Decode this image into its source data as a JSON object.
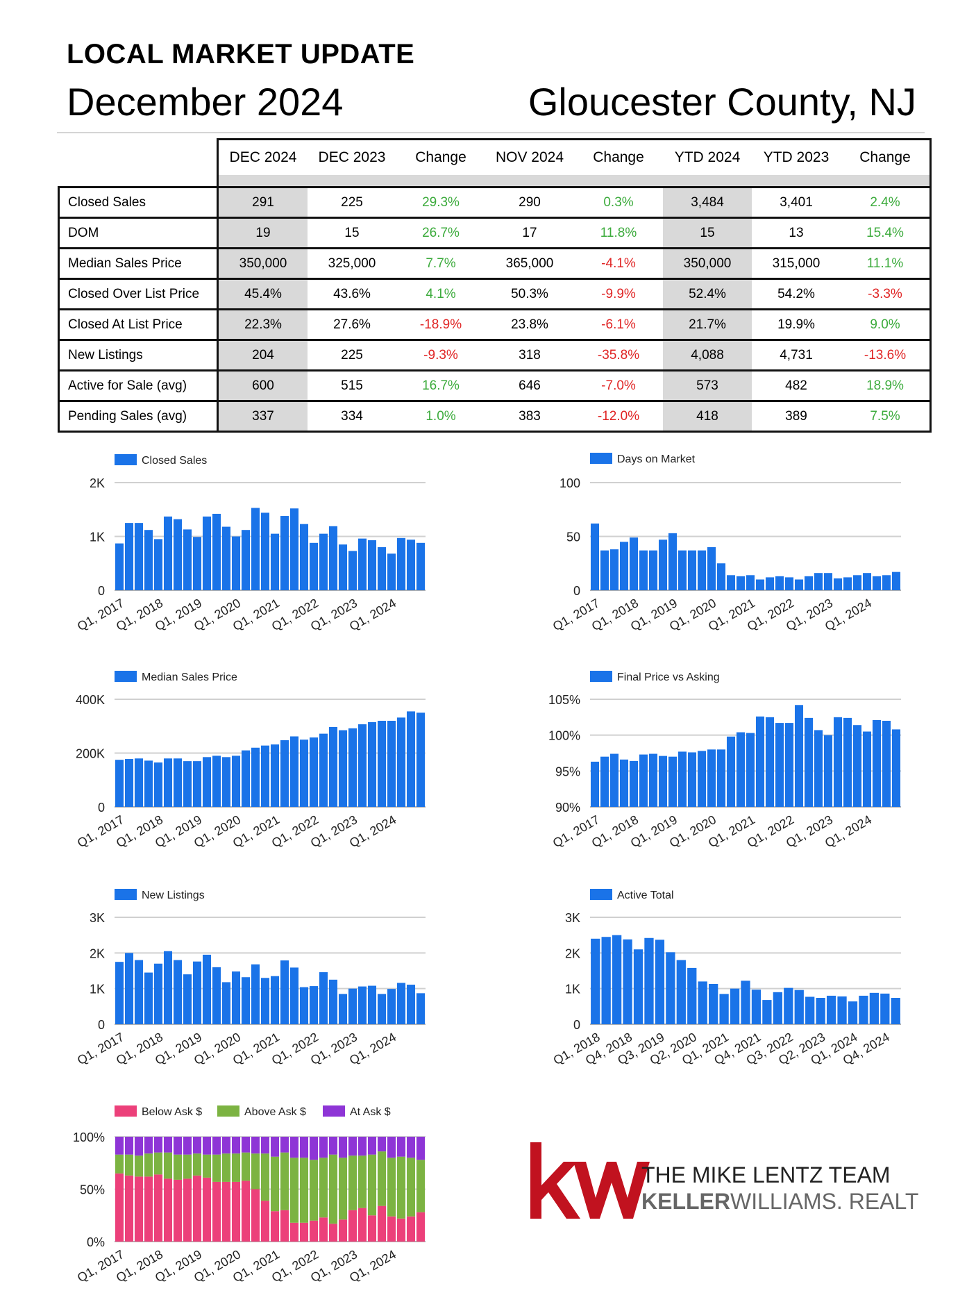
{
  "header": {
    "line1": "LOCAL MARKET UPDATE",
    "month": "December 2024",
    "region": "Gloucester County, NJ"
  },
  "table": {
    "columns": [
      "DEC 2024",
      "DEC 2023",
      "Change",
      "NOV 2024",
      "Change",
      "YTD 2024",
      "YTD 2023",
      "Change"
    ],
    "rows": [
      {
        "label": "Closed Sales",
        "values": [
          "291",
          "225",
          "29.3%",
          "290",
          "0.3%",
          "3,484",
          "3,401",
          "2.4%"
        ]
      },
      {
        "label": "DOM",
        "values": [
          "19",
          "15",
          "26.7%",
          "17",
          "11.8%",
          "15",
          "13",
          "15.4%"
        ]
      },
      {
        "label": "Median Sales Price",
        "values": [
          "350,000",
          "325,000",
          "7.7%",
          "365,000",
          "-4.1%",
          "350,000",
          "315,000",
          "11.1%"
        ]
      },
      {
        "label": "Closed Over List Price",
        "values": [
          "45.4%",
          "43.6%",
          "4.1%",
          "50.3%",
          "-9.9%",
          "52.4%",
          "54.2%",
          "-3.3%"
        ]
      },
      {
        "label": "Closed At List Price",
        "values": [
          "22.3%",
          "27.6%",
          "-18.9%",
          "23.8%",
          "-6.1%",
          "21.7%",
          "19.9%",
          "9.0%"
        ]
      },
      {
        "label": "New Listings",
        "values": [
          "204",
          "225",
          "-9.3%",
          "318",
          "-35.8%",
          "4,088",
          "4,731",
          "-13.6%"
        ]
      },
      {
        "label": "Active for Sale (avg)",
        "values": [
          "600",
          "515",
          "16.7%",
          "646",
          "-7.0%",
          "573",
          "482",
          "18.9%"
        ]
      },
      {
        "label": "Pending Sales (avg)",
        "values": [
          "337",
          "334",
          "1.0%",
          "383",
          "-12.0%",
          "418",
          "389",
          "7.5%"
        ]
      }
    ]
  },
  "colors": {
    "bar": "#1a73e8",
    "positive": "#3cab3c",
    "negative": "#e02424",
    "shade": "#d9d9d9",
    "below": "#ec407a",
    "above": "#7cb342",
    "at": "#8e35d6",
    "kw_red": "#c1121f"
  },
  "chart_data": [
    {
      "id": "closed-sales",
      "type": "bar",
      "title": "Closed Sales",
      "legend": "top-left",
      "grid": true,
      "ylim": [
        0,
        2000
      ],
      "yticks": [
        0,
        1000,
        2000
      ],
      "ytick_labels": [
        "0",
        "1K",
        "2K"
      ],
      "xtick_labels": [
        "Q1, 2017",
        "Q1, 2018",
        "Q1, 2019",
        "Q1, 2020",
        "Q1, 2021",
        "Q1, 2022",
        "Q1, 2023",
        "Q1, 2024"
      ],
      "xtick_index": [
        0,
        4,
        8,
        12,
        16,
        20,
        24,
        28
      ],
      "values": [
        870,
        1250,
        1250,
        1120,
        950,
        1370,
        1320,
        1130,
        990,
        1370,
        1420,
        1180,
        1000,
        1120,
        1530,
        1440,
        1050,
        1380,
        1520,
        1230,
        880,
        1050,
        1190,
        850,
        730,
        960,
        930,
        800,
        680,
        970,
        940,
        880
      ]
    },
    {
      "id": "days-on-market",
      "type": "bar",
      "title": "Days on Market",
      "legend": "top-left",
      "grid": true,
      "ylim": [
        0,
        100
      ],
      "yticks": [
        0,
        50,
        100
      ],
      "ytick_labels": [
        "0",
        "50",
        "100"
      ],
      "xtick_labels": [
        "Q1, 2017",
        "Q1, 2018",
        "Q1, 2019",
        "Q1, 2020",
        "Q1, 2021",
        "Q1, 2022",
        "Q1, 2023",
        "Q1, 2024"
      ],
      "xtick_index": [
        0,
        4,
        8,
        12,
        16,
        20,
        24,
        28
      ],
      "values": [
        62,
        37,
        38,
        45,
        49,
        37,
        37,
        47,
        53,
        37,
        37,
        37,
        40,
        25,
        14,
        13,
        14,
        10,
        12,
        13,
        12,
        10,
        13,
        16,
        16,
        11,
        12,
        14,
        16,
        13,
        14,
        17
      ]
    },
    {
      "id": "median-sales-price",
      "type": "bar",
      "title": "Median Sales Price",
      "legend": "top-left",
      "grid": true,
      "ylim": [
        0,
        400000
      ],
      "yticks": [
        0,
        200000,
        400000
      ],
      "ytick_labels": [
        "0",
        "200K",
        "400K"
      ],
      "xtick_labels": [
        "Q1, 2017",
        "Q1, 2018",
        "Q1, 2019",
        "Q1, 2020",
        "Q1, 2021",
        "Q1, 2022",
        "Q1, 2023",
        "Q1, 2024"
      ],
      "xtick_index": [
        0,
        4,
        8,
        12,
        16,
        20,
        24,
        28
      ],
      "values": [
        175000,
        178000,
        180000,
        172000,
        165000,
        180000,
        180000,
        170000,
        170000,
        185000,
        190000,
        185000,
        190000,
        210000,
        220000,
        228000,
        232000,
        248000,
        262000,
        250000,
        258000,
        272000,
        297000,
        285000,
        292000,
        307000,
        315000,
        320000,
        320000,
        332000,
        355000,
        350000
      ]
    },
    {
      "id": "final-price-vs-asking",
      "type": "bar",
      "title": "Final Price vs Asking",
      "legend": "top-left",
      "grid": true,
      "ylim": [
        90,
        105
      ],
      "yticks": [
        90,
        95,
        100,
        105
      ],
      "ytick_labels": [
        "90%",
        "95%",
        "100%",
        "105%"
      ],
      "xtick_labels": [
        "Q1, 2017",
        "Q1, 2018",
        "Q1, 2019",
        "Q1, 2020",
        "Q1, 2021",
        "Q1, 2022",
        "Q1, 2023",
        "Q1, 2024"
      ],
      "xtick_index": [
        0,
        4,
        8,
        12,
        16,
        20,
        24,
        28
      ],
      "values": [
        96.3,
        97.0,
        97.4,
        96.6,
        96.4,
        97.3,
        97.4,
        97.1,
        97.0,
        97.7,
        97.6,
        97.8,
        98.0,
        98.0,
        99.8,
        100.4,
        100.3,
        102.6,
        102.5,
        101.7,
        101.7,
        104.2,
        102.4,
        100.7,
        100.0,
        102.5,
        102.4,
        101.4,
        100.5,
        102.1,
        102.0,
        100.8
      ]
    },
    {
      "id": "new-listings",
      "type": "bar",
      "title": "New Listings",
      "legend": "top-left",
      "grid": true,
      "ylim": [
        0,
        3000
      ],
      "yticks": [
        0,
        1000,
        2000,
        3000
      ],
      "ytick_labels": [
        "0",
        "1K",
        "2K",
        "3K"
      ],
      "xtick_labels": [
        "Q1, 2017",
        "Q1, 2018",
        "Q1, 2019",
        "Q1, 2020",
        "Q1, 2021",
        "Q1, 2022",
        "Q1, 2023",
        "Q1, 2024"
      ],
      "xtick_index": [
        0,
        4,
        8,
        12,
        16,
        20,
        24,
        28
      ],
      "values": [
        1750,
        2000,
        1800,
        1450,
        1700,
        2050,
        1800,
        1400,
        1760,
        1950,
        1600,
        1180,
        1480,
        1320,
        1680,
        1300,
        1350,
        1790,
        1590,
        1040,
        1070,
        1460,
        1250,
        850,
        1000,
        1060,
        1080,
        850,
        990,
        1160,
        1110,
        870
      ]
    },
    {
      "id": "active-total",
      "type": "bar",
      "title": "Active Total",
      "legend": "top-left",
      "grid": true,
      "ylim": [
        0,
        3000
      ],
      "yticks": [
        0,
        1000,
        2000,
        3000
      ],
      "ytick_labels": [
        "0",
        "1K",
        "2K",
        "3K"
      ],
      "xtick_labels": [
        "Q1, 2018",
        "Q4, 2018",
        "Q3, 2019",
        "Q2, 2020",
        "Q1, 2021",
        "Q4, 2021",
        "Q3, 2022",
        "Q2, 2023",
        "Q1, 2024",
        "Q4, 2024"
      ],
      "xtick_index": [
        0,
        3,
        6,
        9,
        12,
        15,
        18,
        21,
        24,
        27
      ],
      "values": [
        2400,
        2450,
        2500,
        2380,
        2100,
        2420,
        2370,
        2020,
        1800,
        1580,
        1200,
        1130,
        850,
        1000,
        1220,
        970,
        680,
        900,
        1020,
        960,
        770,
        740,
        800,
        780,
        640,
        800,
        880,
        860,
        740
      ]
    },
    {
      "id": "ask-breakdown",
      "type": "stacked-bar-100",
      "legend": "top-left",
      "grid": true,
      "ylim": [
        0,
        100
      ],
      "yticks": [
        0,
        50,
        100
      ],
      "ytick_labels": [
        "0%",
        "50%",
        "100%"
      ],
      "xtick_labels": [
        "Q1, 2017",
        "Q1, 2018",
        "Q1, 2019",
        "Q1, 2020",
        "Q1, 2021",
        "Q1, 2022",
        "Q1, 2023",
        "Q1, 2024"
      ],
      "xtick_index": [
        0,
        4,
        8,
        12,
        16,
        20,
        24,
        28
      ],
      "series": [
        {
          "name": "Below Ask $",
          "color": "#ec407a",
          "values": [
            65,
            63,
            62,
            62,
            64,
            60,
            59,
            60,
            63,
            61,
            57,
            57,
            57,
            58,
            50,
            39,
            29,
            30,
            18,
            18,
            20,
            23,
            17,
            21,
            30,
            32,
            25,
            34,
            24,
            22,
            24,
            28
          ]
        },
        {
          "name": "Above Ask $",
          "color": "#7cb342",
          "values": [
            18,
            20,
            20,
            22,
            21,
            25,
            24,
            23,
            21,
            22,
            26,
            27,
            27,
            27,
            34,
            45,
            52,
            55,
            62,
            62,
            58,
            57,
            66,
            59,
            52,
            50,
            58,
            52,
            56,
            59,
            56,
            50
          ]
        },
        {
          "name": "At Ask $",
          "color": "#8e35d6",
          "values": [
            17,
            17,
            18,
            16,
            15,
            15,
            17,
            17,
            16,
            17,
            17,
            16,
            16,
            15,
            16,
            16,
            19,
            15,
            20,
            20,
            22,
            20,
            17,
            20,
            18,
            18,
            17,
            14,
            20,
            19,
            20,
            22
          ]
        }
      ]
    }
  ],
  "logo": {
    "mark": "kw",
    "team": "THE MIKE LENTZ TEAM",
    "brand_bold": "KELLER",
    "brand_rest": "WILLIAMS",
    "brand_dot": ".",
    "brand_tail": " REALTY"
  }
}
